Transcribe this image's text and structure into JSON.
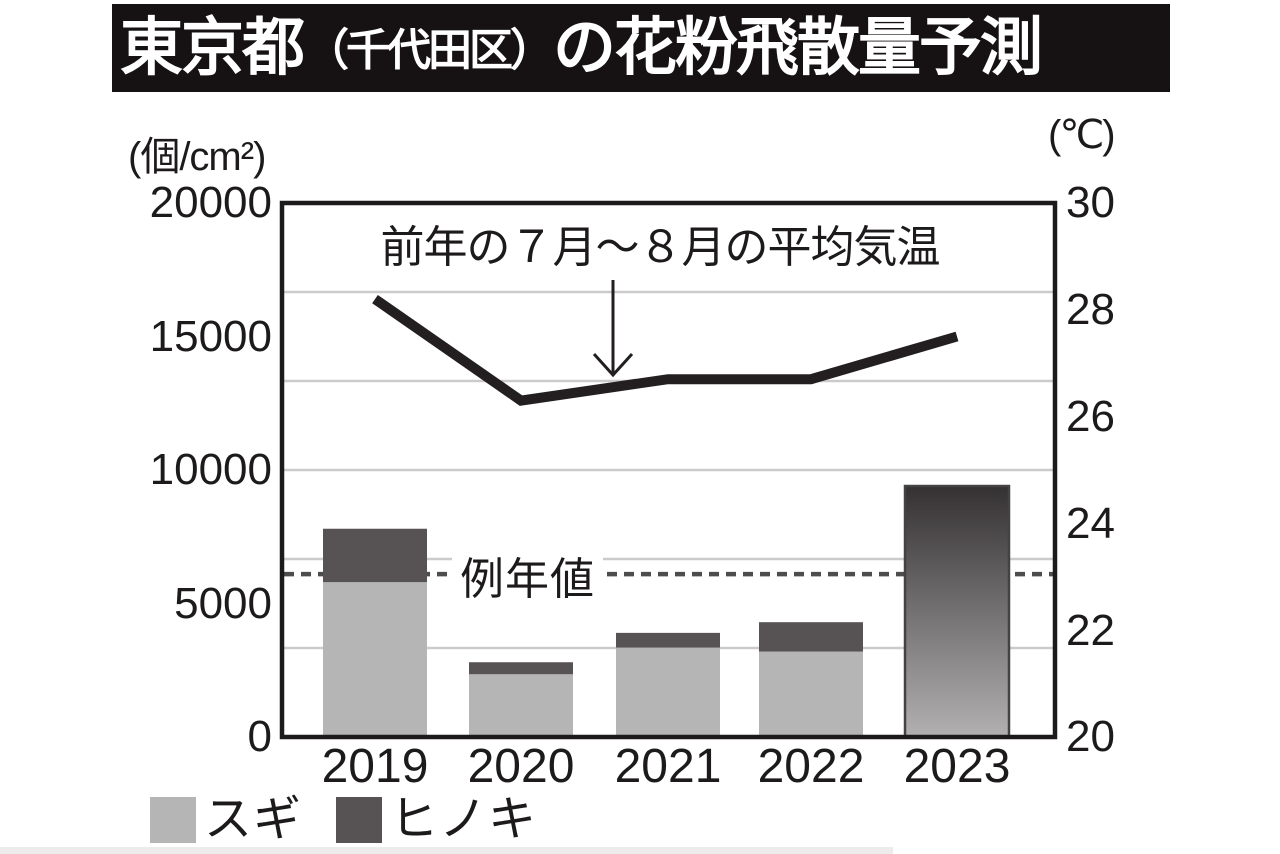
{
  "title": {
    "part1": "東京都",
    "paren": "（千代田区）",
    "part2": "の花粉飛散量予測"
  },
  "axes": {
    "left": {
      "unit": "(個/cm²)",
      "ticks": [
        "20000",
        "15000",
        "10000",
        "5000",
        "0"
      ]
    },
    "right": {
      "unit": "(℃)",
      "ticks": [
        "30",
        "28",
        "26",
        "24",
        "22",
        "20"
      ]
    }
  },
  "annotation": {
    "temp_line_label": "前年の７月～８月の平均気温",
    "reference_label": "例年値"
  },
  "legend": [
    {
      "label": "スギ",
      "color": "#b5b5b5"
    },
    {
      "label": "ヒノキ",
      "color": "#575254"
    }
  ],
  "chart_data": {
    "type": "bar+line",
    "title": "東京都（千代田区）の花粉飛散量予測",
    "categories": [
      "2019",
      "2020",
      "2021",
      "2022",
      "2023"
    ],
    "bar_series": [
      {
        "name": "スギ",
        "axis": "left",
        "color": "#b5b5b5",
        "values": [
          5800,
          2350,
          3350,
          3200,
          null
        ]
      },
      {
        "name": "ヒノキ",
        "axis": "left",
        "color": "#575254",
        "values": [
          2000,
          450,
          550,
          1100,
          null
        ]
      }
    ],
    "bar_totals": [
      7800,
      2800,
      3900,
      4300,
      9400
    ],
    "bar_2023": {
      "total": 9400,
      "render": "vertical-gradient",
      "gradient_top": "#343132",
      "gradient_bottom": "#b2b0b0"
    },
    "line_series": {
      "name": "前年の７月～８月の平均気温",
      "axis": "right",
      "color": "#231f20",
      "values": [
        28.2,
        26.3,
        26.7,
        26.7,
        27.5
      ]
    },
    "reference_line": {
      "label": "例年値",
      "axis": "left",
      "approx_value": 6100,
      "style": "dashed",
      "color": "#4d4d4d"
    },
    "left_axis": {
      "label": "(個/cm²)",
      "range": [
        0,
        20000
      ],
      "tick_step": 5000
    },
    "right_axis": {
      "label": "(℃)",
      "range": [
        20,
        30
      ],
      "tick_step": 2
    },
    "gridlines": "5 interior horizontal light-gray lines, evenly spaced",
    "legend_position": "bottom-left"
  }
}
